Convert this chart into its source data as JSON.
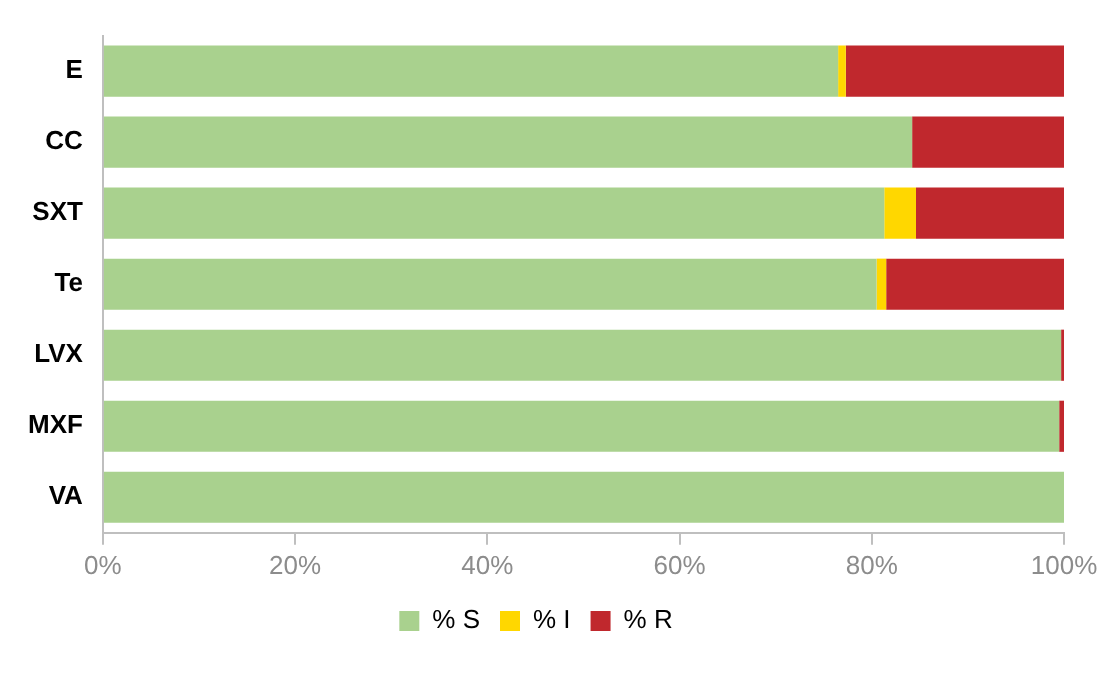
{
  "chart_data": {
    "type": "bar",
    "orientation": "horizontal",
    "stacked": true,
    "categories": [
      "E",
      "CC",
      "SXT",
      "Te",
      "LVX",
      "MXF",
      "VA"
    ],
    "series": [
      {
        "name": "% S",
        "color": "#a9d18e",
        "values": [
          76.5,
          84.2,
          81.3,
          80.5,
          99.7,
          99.5,
          100
        ]
      },
      {
        "name": "% I",
        "color": "#ffd700",
        "values": [
          0.8,
          0,
          3.3,
          1,
          0,
          0,
          0
        ]
      },
      {
        "name": "% R",
        "color": "#c0282d",
        "values": [
          22.7,
          15.8,
          15.4,
          18.5,
          0.3,
          0.5,
          0
        ]
      }
    ],
    "xlim": [
      0,
      100
    ],
    "xticks": [
      {
        "value": 0,
        "label": "0%"
      },
      {
        "value": 20,
        "label": "20%"
      },
      {
        "value": 40,
        "label": "40%"
      },
      {
        "value": 60,
        "label": "60%"
      },
      {
        "value": 80,
        "label": "80%"
      },
      {
        "value": 100,
        "label": "100%"
      }
    ],
    "grid": false,
    "legend": "bottom"
  }
}
